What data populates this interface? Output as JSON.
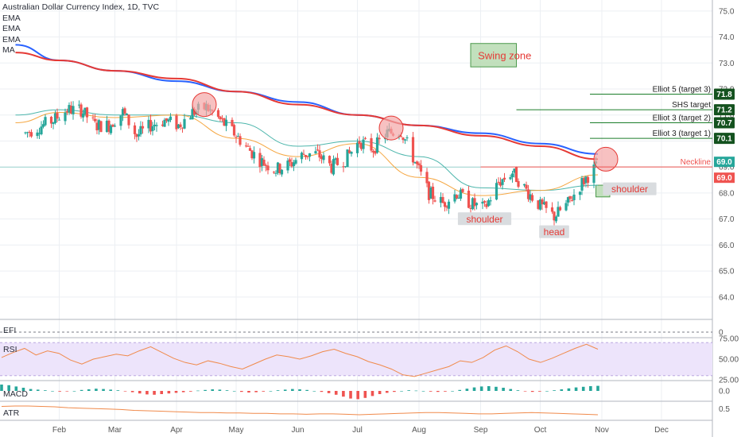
{
  "legend": {
    "title": "Australian Dollar Currency Index, 1D, TVC",
    "lines": [
      "EMA",
      "EMA",
      "EMA",
      "MA"
    ]
  },
  "panes": {
    "efi": "EFI",
    "rsi": "RSI",
    "macd": "MACD",
    "atr": "ATR"
  },
  "colors": {
    "up": "#26a69a",
    "down": "#ef5350",
    "ma_blue": "#2962ff",
    "ma_red": "#e53935",
    "ema_orange": "#f5a742",
    "ema_teal": "#4db6ac",
    "zone_fill": "#b7dbb2",
    "zone_stroke": "#4c9a4c",
    "rsi_band": "#ede4fb",
    "rsi_line": "#f08a4b",
    "macd_pos": "#26a69a",
    "macd_neg": "#ef5350",
    "atr_line": "#f08a4b",
    "target_line": "#1b7d2a",
    "neckline": "#ef5350",
    "grid": "#eceff3"
  },
  "chart_data": {
    "type": "candlestick",
    "title": "Australian Dollar Currency Index, 1D, TVC",
    "x_ticks": [
      "Feb",
      "Mar",
      "Apr",
      "May",
      "Jun",
      "Jul",
      "Aug",
      "Sep",
      "Oct",
      "Nov",
      "Dec"
    ],
    "y_ticks": [
      "75.0",
      "74.0",
      "73.0",
      "72.0",
      "71.0",
      "70.0",
      "69.0",
      "68.0",
      "67.0",
      "66.0",
      "65.0",
      "64.0"
    ],
    "ylim": [
      63.2,
      75.3
    ],
    "last_price": "69.0",
    "price_line": "69.0",
    "anchors": [
      {
        "date": "Jan 15",
        "price": 70.3
      },
      {
        "date": "Jan 29",
        "price": 70.8
      },
      {
        "date": "Feb 05",
        "price": 71.2
      },
      {
        "date": "Feb 12",
        "price": 71.2
      },
      {
        "date": "Feb 19",
        "price": 70.6
      },
      {
        "date": "Feb 26",
        "price": 70.6
      },
      {
        "date": "Mar 05",
        "price": 71.1
      },
      {
        "date": "Mar 12",
        "price": 70.2
      },
      {
        "date": "Mar 19",
        "price": 70.6
      },
      {
        "date": "Mar 26",
        "price": 70.8
      },
      {
        "date": "Apr 02",
        "price": 70.6
      },
      {
        "date": "Apr 09",
        "price": 71.1
      },
      {
        "date": "Apr 16",
        "price": 71.3
      },
      {
        "date": "Apr 23",
        "price": 70.8
      },
      {
        "date": "Apr 30",
        "price": 70.3
      },
      {
        "date": "May 07",
        "price": 69.7
      },
      {
        "date": "May 14",
        "price": 69.2
      },
      {
        "date": "May 21",
        "price": 68.9
      },
      {
        "date": "May 28",
        "price": 69.1
      },
      {
        "date": "Jun 04",
        "price": 69.5
      },
      {
        "date": "Jun 11",
        "price": 69.5
      },
      {
        "date": "Jun 18",
        "price": 69.0
      },
      {
        "date": "Jun 25",
        "price": 69.3
      },
      {
        "date": "Jul 02",
        "price": 70.0
      },
      {
        "date": "Jul 09",
        "price": 69.7
      },
      {
        "date": "Jul 16",
        "price": 70.3
      },
      {
        "date": "Jul 23",
        "price": 70.4
      },
      {
        "date": "Jul 30",
        "price": 69.2
      },
      {
        "date": "Aug 06",
        "price": 68.0
      },
      {
        "date": "Aug 13",
        "price": 67.6
      },
      {
        "date": "Aug 20",
        "price": 68.0
      },
      {
        "date": "Aug 27",
        "price": 67.6
      },
      {
        "date": "Sep 03",
        "price": 67.4
      },
      {
        "date": "Sep 10",
        "price": 68.4
      },
      {
        "date": "Sep 17",
        "price": 68.8
      },
      {
        "date": "Sep 24",
        "price": 68.1
      },
      {
        "date": "Oct 01",
        "price": 67.5
      },
      {
        "date": "Oct 08",
        "price": 67.1
      },
      {
        "date": "Oct 15",
        "price": 67.6
      },
      {
        "date": "Oct 22",
        "price": 68.4
      },
      {
        "date": "Oct 29",
        "price": 69.0
      }
    ],
    "series": [
      {
        "kind": "ma",
        "color": "#2962ff",
        "points": [
          [
            "Jan 10",
            73.7
          ],
          [
            "Feb 01",
            73.1
          ],
          [
            "Mar 01",
            72.7
          ],
          [
            "Apr 01",
            72.3
          ],
          [
            "May 01",
            71.9
          ],
          [
            "Jun 01",
            71.5
          ],
          [
            "Jul 01",
            71.0
          ],
          [
            "Aug 01",
            70.6
          ],
          [
            "Sep 01",
            70.3
          ],
          [
            "Oct 01",
            69.9
          ],
          [
            "Oct 30",
            69.5
          ]
        ]
      },
      {
        "kind": "ema",
        "color": "#e53935",
        "points": [
          [
            "Jan 10",
            73.4
          ],
          [
            "Feb 01",
            73.1
          ],
          [
            "Mar 01",
            72.7
          ],
          [
            "Apr 01",
            72.4
          ],
          [
            "May 01",
            71.9
          ],
          [
            "Jun 01",
            71.4
          ],
          [
            "Jul 01",
            71.0
          ],
          [
            "Aug 01",
            70.6
          ],
          [
            "Sep 01",
            70.2
          ],
          [
            "Oct 01",
            69.8
          ],
          [
            "Oct 30",
            69.3
          ]
        ]
      },
      {
        "kind": "ema",
        "color": "#4db6ac",
        "points": [
          [
            "Jan 10",
            71.0
          ],
          [
            "Feb 01",
            71.2
          ],
          [
            "Mar 01",
            71.0
          ],
          [
            "Apr 01",
            71.0
          ],
          [
            "May 01",
            70.7
          ],
          [
            "Jun 01",
            69.8
          ],
          [
            "Jul 01",
            70.0
          ],
          [
            "Aug 01",
            69.4
          ],
          [
            "Sep 01",
            68.2
          ],
          [
            "Oct 01",
            68.1
          ],
          [
            "Oct 30",
            68.3
          ]
        ]
      },
      {
        "kind": "ema",
        "color": "#f5a742",
        "points": [
          [
            "Jan 10",
            70.7
          ],
          [
            "Feb 01",
            71.1
          ],
          [
            "Mar 01",
            70.9
          ],
          [
            "Apr 01",
            71.0
          ],
          [
            "May 01",
            70.1
          ],
          [
            "Jun 01",
            69.4
          ],
          [
            "Jul 01",
            69.9
          ],
          [
            "Aug 01",
            68.6
          ],
          [
            "Sep 01",
            67.9
          ],
          [
            "Oct 01",
            68.1
          ],
          [
            "Oct 30",
            68.7
          ]
        ]
      }
    ],
    "circles": [
      {
        "date": "Apr 15",
        "price": 71.4
      },
      {
        "date": "Jul 18",
        "price": 70.5
      },
      {
        "date": "Nov 03",
        "price": 69.3
      }
    ],
    "target_lines": [
      {
        "label": "Elliot 5 (target 3)",
        "badge": "71.8",
        "value": 71.8,
        "from": "Oct 26"
      },
      {
        "label": "SHS target",
        "badge": "71.2",
        "value": 71.2,
        "from": "Sep 19"
      },
      {
        "label": "Elliot 3 (target 2)",
        "badge": "70.7",
        "value": 70.7,
        "from": "Oct 26"
      },
      {
        "label": "Elliot 3 (target 1)",
        "badge": "70.1",
        "value": 70.1,
        "from": "Oct 26"
      }
    ],
    "neckline": {
      "label": "Neckline",
      "badge": "69.0",
      "value": 69.0,
      "from": "Sep 01"
    },
    "zones": [
      {
        "label": "Swing zone",
        "from": "Aug 27",
        "to": "Sep 19",
        "top": 73.75,
        "bottom": 72.85
      },
      {
        "label": "",
        "from": "Oct 29",
        "to": "Nov 05",
        "top": 68.3,
        "bottom": 67.85
      }
    ],
    "annotations": [
      {
        "text": "shoulder",
        "date": "Sep 03",
        "price": 66.95
      },
      {
        "text": "head",
        "date": "Oct 08",
        "price": 66.45
      },
      {
        "text": "shoulder",
        "date": "Nov 15",
        "price": 68.1
      }
    ],
    "efi": {
      "ticks": [
        "0"
      ],
      "value": 0
    },
    "rsi": {
      "ticks": [
        "75.00",
        "50.00",
        "25.00"
      ],
      "band": [
        30,
        70
      ],
      "ylim": [
        25,
        75
      ],
      "values": [
        52,
        58,
        63,
        55,
        60,
        57,
        49,
        44,
        50,
        53,
        56,
        54,
        60,
        65,
        58,
        51,
        46,
        43,
        48,
        45,
        41,
        38,
        44,
        50,
        55,
        53,
        50,
        54,
        59,
        62,
        57,
        53,
        47,
        43,
        38,
        31,
        29,
        33,
        37,
        41,
        48,
        46,
        52,
        61,
        66,
        59,
        50,
        46,
        51,
        57,
        63,
        68,
        62
      ]
    },
    "macd": {
      "ticks": [
        "0.0"
      ],
      "ylim": [
        -0.3,
        0.3
      ],
      "values": [
        0.2,
        0.18,
        0.14,
        0.1,
        0.06,
        0.04,
        0.02,
        0,
        -0.02,
        -0.01,
        0,
        0.03,
        0.05,
        0.07,
        0.06,
        0.04,
        0.02,
        -0.01,
        -0.04,
        -0.08,
        -0.11,
        -0.12,
        -0.1,
        -0.08,
        -0.06,
        -0.04,
        -0.02,
        0.01,
        0.03,
        0.05,
        0.04,
        0.02,
        0,
        -0.03,
        -0.05,
        -0.04,
        -0.02,
        0,
        0.02,
        0.04,
        0.06,
        0.05,
        0.03,
        0,
        -0.03,
        -0.07,
        -0.12,
        -0.18,
        -0.24,
        -0.26,
        -0.22,
        -0.16,
        -0.1,
        -0.06,
        -0.03,
        0,
        0.02,
        0.01,
        0,
        -0.02,
        -0.03,
        -0.02,
        0,
        0.03,
        0.07,
        0.11,
        0.14,
        0.15,
        0.13,
        0.1,
        0.06,
        0.02,
        -0.01,
        -0.03,
        -0.02,
        0,
        0.02,
        0.05,
        0.08,
        0.11,
        0.13,
        0.15,
        0.16
      ]
    },
    "atr": {
      "ticks": [
        "0.5"
      ],
      "ylim": [
        0.25,
        0.65
      ],
      "values": [
        0.55,
        0.56,
        0.56,
        0.55,
        0.54,
        0.52,
        0.51,
        0.5,
        0.49,
        0.48,
        0.46,
        0.45,
        0.44,
        0.43,
        0.42,
        0.41,
        0.41,
        0.4,
        0.4,
        0.39,
        0.39,
        0.38,
        0.38,
        0.37,
        0.38,
        0.38,
        0.37,
        0.36,
        0.37,
        0.38,
        0.39,
        0.4,
        0.41,
        0.41,
        0.4,
        0.39,
        0.38,
        0.38,
        0.39,
        0.4,
        0.41,
        0.4,
        0.39,
        0.38,
        0.37,
        0.36
      ]
    }
  }
}
